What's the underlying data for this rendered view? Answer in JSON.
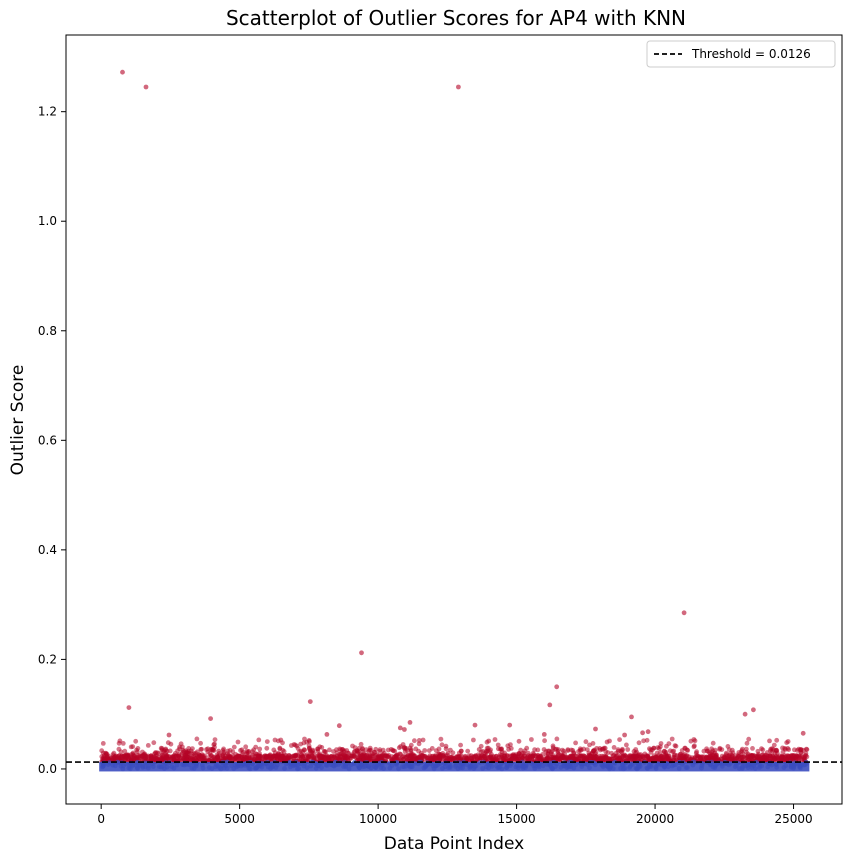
{
  "chart_data": {
    "type": "scatter",
    "title": "Scatterplot of Outlier Scores for AP4 with KNN",
    "xlabel": "Data Point Index",
    "ylabel": "Outlier Score",
    "xlim": [
      -1270,
      26750
    ],
    "ylim": [
      -0.064,
      1.34
    ],
    "x_ticks": [
      0,
      5000,
      10000,
      15000,
      20000,
      25000
    ],
    "y_ticks": [
      0.0,
      0.2,
      0.4,
      0.6,
      0.8,
      1.0,
      1.2
    ],
    "x_tick_labels": [
      "0",
      "5000",
      "10000",
      "15000",
      "20000",
      "25000"
    ],
    "y_tick_labels": [
      "0.0",
      "0.2",
      "0.4",
      "0.6",
      "0.8",
      "1.0",
      "1.2"
    ],
    "threshold": 0.0126,
    "legend": {
      "position": "top-right",
      "entries": [
        "Threshold = 0.0126"
      ]
    },
    "grid": false,
    "colors": {
      "outlier": "#b40426",
      "inlier": "#3b4cc0",
      "threshold": "#000000"
    },
    "n_points": 25500,
    "series": [
      {
        "name": "",
        "group": "above-threshold",
        "points": [
          [
            770,
            1.272
          ],
          [
            1620,
            1.245
          ],
          [
            12900,
            1.245
          ],
          [
            21050,
            0.285
          ],
          [
            9400,
            0.212
          ],
          [
            16450,
            0.15
          ],
          [
            7550,
            0.123
          ],
          [
            16200,
            0.117
          ],
          [
            1000,
            0.112
          ],
          [
            23550,
            0.108
          ],
          [
            23250,
            0.1
          ],
          [
            19150,
            0.095
          ],
          [
            3950,
            0.092
          ],
          [
            11150,
            0.085
          ],
          [
            13500,
            0.08
          ],
          [
            14750,
            0.08
          ],
          [
            8600,
            0.079
          ],
          [
            10800,
            0.075
          ],
          [
            10950,
            0.072
          ],
          [
            17850,
            0.073
          ],
          [
            19750,
            0.068
          ],
          [
            19550,
            0.066
          ],
          [
            25350,
            0.065
          ],
          [
            16000,
            0.063
          ],
          [
            2450,
            0.062
          ],
          [
            18900,
            0.062
          ],
          [
            8150,
            0.063
          ]
        ]
      },
      {
        "name": "",
        "group": "below-threshold",
        "range_y": [
          0.0,
          0.0126
        ]
      }
    ]
  }
}
